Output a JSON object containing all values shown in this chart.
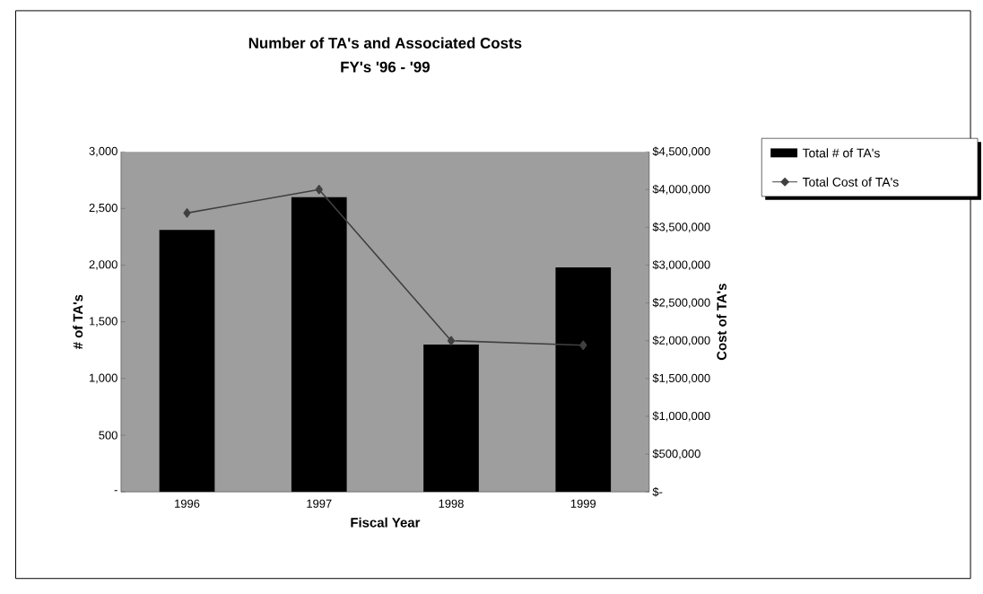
{
  "chart_data": {
    "type": "bar",
    "title": "Number of TA's and Associated Costs",
    "subtitle": "FY's '96 - '99",
    "xlabel": "Fiscal Year",
    "ylabel": "# of TA's",
    "y2label": "Cost of TA's",
    "categories": [
      "1996",
      "1997",
      "1998",
      "1999"
    ],
    "series": [
      {
        "name": "Total # of TA's",
        "type": "bar",
        "color": "#000000",
        "values": [
          2310,
          2600,
          1300,
          1980
        ]
      },
      {
        "name": "Total Cost of TA's",
        "type": "line",
        "axis": "y2",
        "color": "#404040",
        "marker": "diamond",
        "values": [
          3690000,
          4000000,
          2000000,
          1940000
        ]
      }
    ],
    "ylim": [
      0,
      3000
    ],
    "yticks": [
      {
        "value": 0,
        "label": "-"
      },
      500,
      {
        "value": 1000,
        "label": "1,000"
      },
      {
        "value": 1500,
        "label": "1,500"
      },
      {
        "value": 2000,
        "label": "2,000"
      },
      {
        "value": 2500,
        "label": "2,500"
      },
      {
        "value": 3000,
        "label": "3,000"
      }
    ],
    "y2lim": [
      0,
      4500000
    ],
    "y2ticks": [
      {
        "value": 0,
        "label": "$-"
      },
      {
        "value": 500000,
        "label": "$500,000"
      },
      {
        "value": 1000000,
        "label": "$1,000,000"
      },
      {
        "value": 1500000,
        "label": "$1,500,000"
      },
      {
        "value": 2000000,
        "label": "$2,000,000"
      },
      {
        "value": 2500000,
        "label": "$2,500,000"
      },
      {
        "value": 3000000,
        "label": "$3,000,000"
      },
      {
        "value": 3500000,
        "label": "$3,500,000"
      },
      {
        "value": 4000000,
        "label": "$4,000,000"
      },
      {
        "value": 4500000,
        "label": "$4,500,000"
      }
    ],
    "grid": false,
    "legend": "right"
  }
}
